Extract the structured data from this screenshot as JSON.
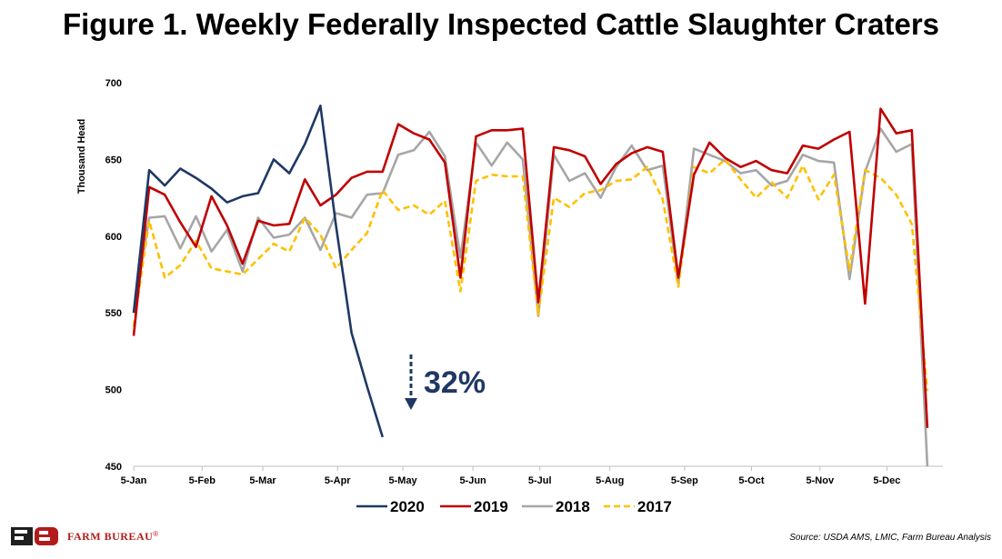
{
  "title": "Figure 1. Weekly Federally Inspected Cattle Slaughter Craters",
  "source": "Source: USDA AMS, LMIC, Farm Bureau Analysis",
  "logo_text": "FARM BUREAU",
  "logo_mark": "®",
  "colors": {
    "2020": "#1f3864",
    "2019": "#c00000",
    "2018": "#a6a6a6",
    "2017": "#ffc000",
    "annotation": "#1f3864"
  },
  "annotation": {
    "text": "32%",
    "icon": "down-arrow-icon"
  },
  "chart_data": {
    "type": "line",
    "title": "Figure 1. Weekly Federally Inspected Cattle Slaughter Craters",
    "ylabel": "Thousand Head",
    "xlabel": "",
    "ylim": [
      450,
      700
    ],
    "yticks": [
      450,
      500,
      550,
      600,
      650,
      700
    ],
    "xlim": [
      1,
      53
    ],
    "xtick_labels": [
      "5-Jan",
      "5-Feb",
      "5-Mar",
      "5-Apr",
      "5-May",
      "5-Jun",
      "5-Jul",
      "5-Aug",
      "5-Sep",
      "5-Oct",
      "5-Nov",
      "5-Dec"
    ],
    "xtick_weeks": [
      1,
      5.4,
      9.3,
      14.1,
      18.3,
      22.8,
      27.1,
      31.6,
      36.4,
      40.7,
      45.1,
      49.4
    ],
    "grid": false,
    "legend_position": "bottom",
    "series": [
      {
        "name": "2020",
        "style": "solid",
        "values": [
          550,
          643,
          633,
          644,
          638,
          631,
          622,
          626,
          628,
          650,
          641,
          660,
          685,
          607,
          537,
          502,
          469
        ]
      },
      {
        "name": "2019",
        "style": "solid",
        "values": [
          535,
          632,
          627,
          609,
          593,
          626,
          607,
          582,
          610,
          607,
          608,
          637,
          620,
          627,
          638,
          642,
          642,
          673,
          667,
          663,
          648,
          573,
          665,
          669,
          669,
          670,
          557,
          658,
          656,
          652,
          634,
          647,
          654,
          658,
          655,
          573,
          640,
          661,
          651,
          645,
          649,
          643,
          641,
          659,
          657,
          663,
          668,
          556,
          683,
          667,
          669,
          475
        ]
      },
      {
        "name": "2018",
        "style": "solid",
        "values": [
          550,
          612,
          613,
          592,
          613,
          590,
          604,
          577,
          612,
          599,
          601,
          612,
          591,
          615,
          612,
          627,
          628,
          653,
          656,
          668,
          652,
          586,
          661,
          646,
          661,
          650,
          548,
          653,
          636,
          641,
          625,
          645,
          659,
          643,
          646,
          569,
          657,
          653,
          649,
          641,
          643,
          633,
          636,
          653,
          649,
          648,
          572,
          642,
          670,
          655,
          660,
          450
        ]
      },
      {
        "name": "2017",
        "style": "dashed",
        "values": [
          541,
          610,
          573,
          581,
          597,
          579,
          577,
          575,
          585,
          595,
          590,
          612,
          601,
          579,
          591,
          602,
          630,
          617,
          620,
          614,
          623,
          564,
          636,
          640,
          639,
          639,
          549,
          625,
          619,
          628,
          630,
          636,
          637,
          645,
          624,
          567,
          645,
          641,
          650,
          637,
          625,
          635,
          625,
          646,
          624,
          640,
          578,
          643,
          638,
          627,
          608,
          499
        ]
      }
    ]
  }
}
